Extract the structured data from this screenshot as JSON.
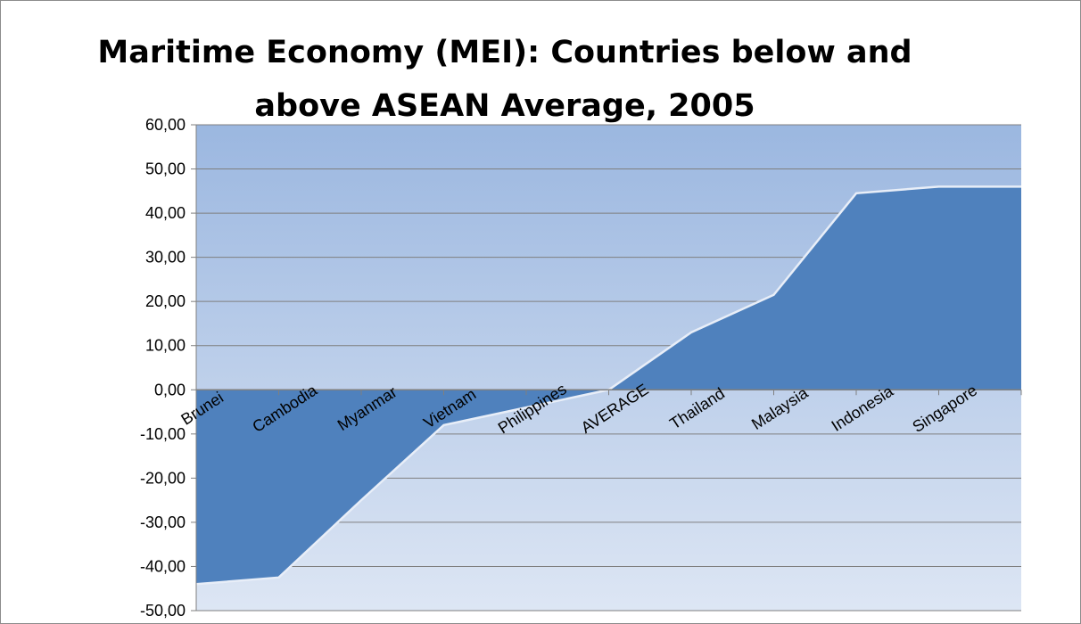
{
  "chart_data": {
    "type": "area",
    "title_line1": "Maritime Economy (MEI): Countries below and",
    "title_line2": "above ASEAN Average, 2005",
    "categories": [
      "Brunei",
      "Cambodia",
      "Myanmar",
      "Vietnam",
      "Philippines",
      "AVERAGE",
      "Thailand",
      "Malaysia",
      "Indonesia",
      "Singapore"
    ],
    "values": [
      -44,
      -42.5,
      -25,
      -8,
      -4,
      0,
      13,
      21.5,
      44.5,
      46
    ],
    "ylim": [
      -50,
      60
    ],
    "yticks": [
      "60,00",
      "50,00",
      "40,00",
      "30,00",
      "20,00",
      "10,00",
      "0,00",
      "-10,00",
      "-20,00",
      "-30,00",
      "-40,00",
      "-50,00"
    ],
    "grid": true,
    "colors": {
      "area_fill": "#4f81bd",
      "plot_bg_top": "#9bb7e0",
      "plot_bg_bottom": "#dde6f4",
      "gridline": "#7f7f7f",
      "area_edge": "#e8eef8"
    }
  }
}
